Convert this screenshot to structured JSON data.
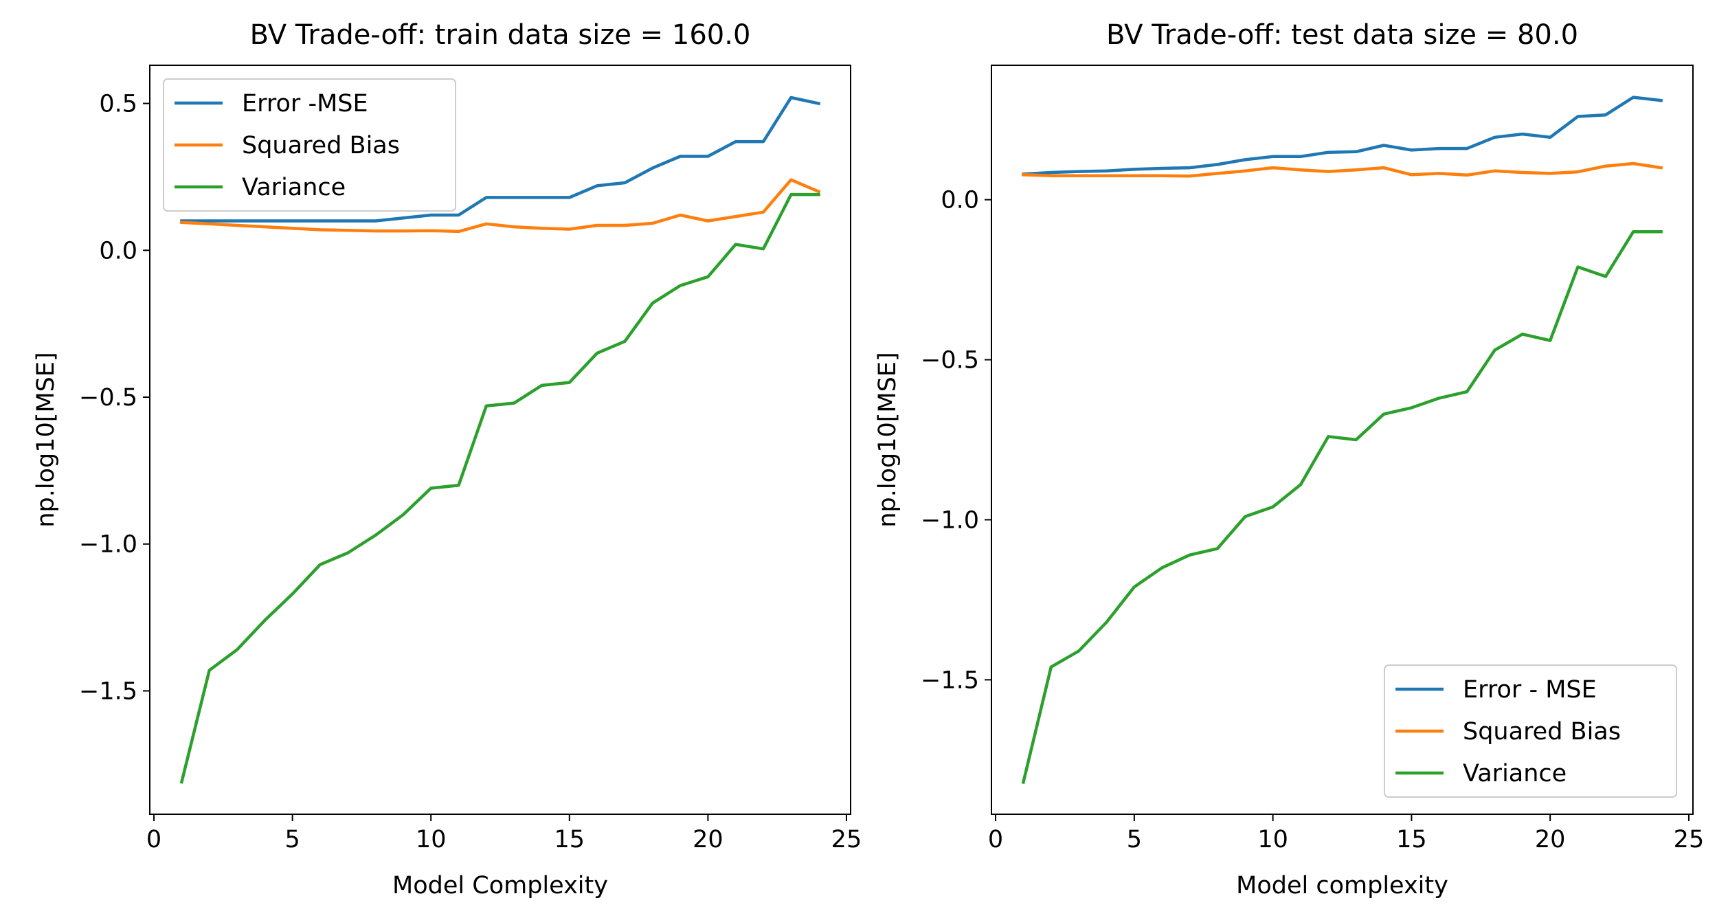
{
  "chart_data": [
    {
      "type": "line",
      "title": "BV Trade-off: train data size = 160.0",
      "xlabel": "Model Complexity",
      "ylabel": "np.log10[MSE]",
      "xlim": [
        -0.15,
        25.15
      ],
      "ylim": [
        -1.92,
        0.63
      ],
      "xticks": [
        0,
        5,
        10,
        15,
        20,
        25
      ],
      "yticks": [
        0.5,
        0.0,
        -0.5,
        -1.0,
        -1.5
      ],
      "xtick_labels": [
        "0",
        "5",
        "10",
        "15",
        "20",
        "25"
      ],
      "ytick_labels": [
        "0.5",
        "0.0",
        "−0.5",
        "−1.0",
        "−1.5"
      ],
      "grid": false,
      "legend_position": "upper-left",
      "x": [
        1,
        2,
        3,
        4,
        5,
        6,
        7,
        8,
        9,
        10,
        11,
        12,
        13,
        14,
        15,
        16,
        17,
        18,
        19,
        20,
        21,
        22,
        23,
        24
      ],
      "series": [
        {
          "name": "Error -MSE",
          "color": "#1f77b4",
          "values": [
            0.1,
            0.1,
            0.1,
            0.1,
            0.1,
            0.1,
            0.1,
            0.1,
            0.11,
            0.12,
            0.12,
            0.18,
            0.18,
            0.18,
            0.18,
            0.22,
            0.23,
            0.28,
            0.32,
            0.32,
            0.37,
            0.37,
            0.52,
            0.5
          ]
        },
        {
          "name": "Squared Bias",
          "color": "#ff7f0e",
          "values": [
            0.095,
            0.09,
            0.085,
            0.08,
            0.075,
            0.07,
            0.068,
            0.066,
            0.066,
            0.067,
            0.064,
            0.09,
            0.08,
            0.075,
            0.072,
            0.085,
            0.085,
            0.092,
            0.12,
            0.1,
            0.115,
            0.13,
            0.24,
            0.2
          ]
        },
        {
          "name": "Variance",
          "color": "#2ca02c",
          "values": [
            -1.81,
            -1.43,
            -1.36,
            -1.26,
            -1.17,
            -1.07,
            -1.03,
            -0.97,
            -0.9,
            -0.81,
            -0.8,
            -0.53,
            -0.52,
            -0.46,
            -0.45,
            -0.35,
            -0.31,
            -0.18,
            -0.12,
            -0.09,
            0.02,
            0.005,
            0.19,
            0.19
          ]
        }
      ]
    },
    {
      "type": "line",
      "title": "BV Trade-off: test data size = 80.0",
      "xlabel": "Model complexity",
      "ylabel": "np.log10[MSE]",
      "xlim": [
        -0.15,
        25.15
      ],
      "ylim": [
        -1.92,
        0.42
      ],
      "xticks": [
        0,
        5,
        10,
        15,
        20,
        25
      ],
      "yticks": [
        0.0,
        -0.5,
        -1.0,
        -1.5
      ],
      "xtick_labels": [
        "0",
        "5",
        "10",
        "15",
        "20",
        "25"
      ],
      "ytick_labels": [
        "0.0",
        "−0.5",
        "−1.0",
        "−1.5"
      ],
      "grid": false,
      "legend_position": "lower-right",
      "x": [
        1,
        2,
        3,
        4,
        5,
        6,
        7,
        8,
        9,
        10,
        11,
        12,
        13,
        14,
        15,
        16,
        17,
        18,
        19,
        20,
        21,
        22,
        23,
        24
      ],
      "series": [
        {
          "name": "Error - MSE",
          "color": "#1f77b4",
          "values": [
            0.08,
            0.085,
            0.088,
            0.09,
            0.095,
            0.098,
            0.1,
            0.11,
            0.125,
            0.135,
            0.135,
            0.148,
            0.15,
            0.17,
            0.155,
            0.16,
            0.16,
            0.195,
            0.205,
            0.195,
            0.26,
            0.265,
            0.32,
            0.31
          ]
        },
        {
          "name": "Squared Bias",
          "color": "#ff7f0e",
          "values": [
            0.078,
            0.075,
            0.075,
            0.075,
            0.075,
            0.075,
            0.074,
            0.082,
            0.09,
            0.1,
            0.093,
            0.088,
            0.093,
            0.1,
            0.078,
            0.082,
            0.077,
            0.09,
            0.085,
            0.082,
            0.087,
            0.105,
            0.113,
            0.1
          ]
        },
        {
          "name": "Variance",
          "color": "#2ca02c",
          "values": [
            -1.82,
            -1.46,
            -1.41,
            -1.32,
            -1.21,
            -1.15,
            -1.11,
            -1.09,
            -0.99,
            -0.96,
            -0.89,
            -0.74,
            -0.75,
            -0.67,
            -0.65,
            -0.62,
            -0.6,
            -0.47,
            -0.42,
            -0.44,
            -0.21,
            -0.24,
            -0.1,
            -0.1
          ]
        }
      ]
    }
  ]
}
